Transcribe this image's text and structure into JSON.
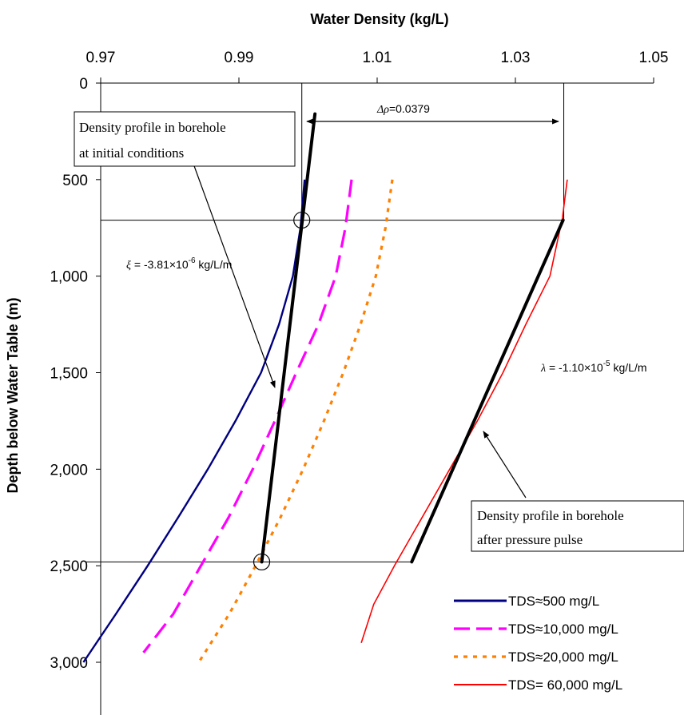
{
  "chart_data": {
    "type": "line",
    "xlabel": "Water Density (kg/L)",
    "ylabel": "Depth below Water Table (m)",
    "xlim": [
      0.97,
      1.05
    ],
    "ylim": [
      0,
      3000
    ],
    "y_inverted": true,
    "x_axis_position": "top",
    "x_ticks": [
      "0.97",
      "0.99",
      "1.01",
      "1.03",
      "1.05"
    ],
    "x_tick_values": [
      0.97,
      0.99,
      1.01,
      1.03,
      1.05
    ],
    "y_ticks": [
      "0",
      "500",
      "1,000",
      "1,500",
      "2,000",
      "2,500",
      "3,000"
    ],
    "y_tick_values": [
      0,
      500,
      1000,
      1500,
      2000,
      2500,
      3000
    ],
    "grid": false,
    "legend_position": "bottom-right",
    "series": [
      {
        "name": "TDS≈500 mg/L",
        "color": "#000080",
        "style": "solid",
        "points": [
          [
            0.9995,
            500
          ],
          [
            0.9989,
            750
          ],
          [
            0.9978,
            1000
          ],
          [
            0.9958,
            1250
          ],
          [
            0.9932,
            1500
          ],
          [
            0.9895,
            1750
          ],
          [
            0.9855,
            2000
          ],
          [
            0.9812,
            2250
          ],
          [
            0.9768,
            2500
          ],
          [
            0.9722,
            2750
          ],
          [
            0.9675,
            3000
          ]
        ]
      },
      {
        "name": "TDS≈10,000 mg/L",
        "color": "#ff00ff",
        "style": "dashed",
        "points": [
          [
            1.0063,
            500
          ],
          [
            1.0054,
            750
          ],
          [
            1.004,
            1000
          ],
          [
            1.0015,
            1250
          ],
          [
            0.9983,
            1500
          ],
          [
            0.9952,
            1750
          ],
          [
            0.992,
            2000
          ],
          [
            0.9885,
            2250
          ],
          [
            0.9845,
            2500
          ],
          [
            0.9805,
            2750
          ],
          [
            0.9762,
            2950
          ]
        ]
      },
      {
        "name": "TDS≈20,000 mg/L",
        "color": "#ff8000",
        "style": "dotted",
        "points": [
          [
            1.0122,
            500
          ],
          [
            1.0112,
            750
          ],
          [
            1.0098,
            1000
          ],
          [
            1.0076,
            1250
          ],
          [
            1.0051,
            1500
          ],
          [
            1.0023,
            1750
          ],
          [
            0.9993,
            2000
          ],
          [
            0.996,
            2250
          ],
          [
            0.9924,
            2500
          ],
          [
            0.9886,
            2750
          ],
          [
            0.9842,
            3000
          ]
        ]
      },
      {
        "name": "TDS= 60,000 mg/L",
        "color": "#ff0000",
        "style": "solid",
        "points": [
          [
            1.0375,
            500
          ],
          [
            1.0368,
            700
          ],
          [
            1.035,
            1000
          ],
          [
            1.0315,
            1250
          ],
          [
            1.0282,
            1500
          ],
          [
            1.0245,
            1750
          ],
          [
            1.0205,
            2000
          ],
          [
            1.0165,
            2250
          ],
          [
            1.0125,
            2500
          ],
          [
            1.0095,
            2700
          ],
          [
            1.0077,
            2900
          ]
        ]
      }
    ],
    "profile_lines": [
      {
        "color": "#000000",
        "points": [
          [
            1.001,
            160
          ],
          [
            0.9933,
            2480
          ]
        ]
      },
      {
        "color": "#000000",
        "points": [
          [
            1.0369,
            710
          ],
          [
            1.015,
            2480
          ]
        ]
      }
    ],
    "reference_lines": {
      "horizontal": [
        710,
        2480
      ],
      "vertical": [
        0.9991,
        1.037
      ]
    },
    "markers": [
      [
        0.9991,
        710
      ],
      [
        0.9933,
        2480
      ]
    ],
    "annotations": {
      "delta_rho": {
        "symbol": "Δρ",
        "text": "=0.0379"
      },
      "xi": {
        "symbol": "ξ",
        "prefix": " = -3.81×10",
        "exp": "-6",
        "suffix": " kg/L/m"
      },
      "lambda": {
        "symbol": "λ",
        "prefix": " = -1.10×10",
        "exp": "-5",
        "suffix": " kg/L/m"
      },
      "box_initial": [
        "Density profile in borehole",
        "at initial conditions"
      ],
      "box_after": [
        "Density profile in borehole",
        "after pressure pulse"
      ]
    }
  }
}
